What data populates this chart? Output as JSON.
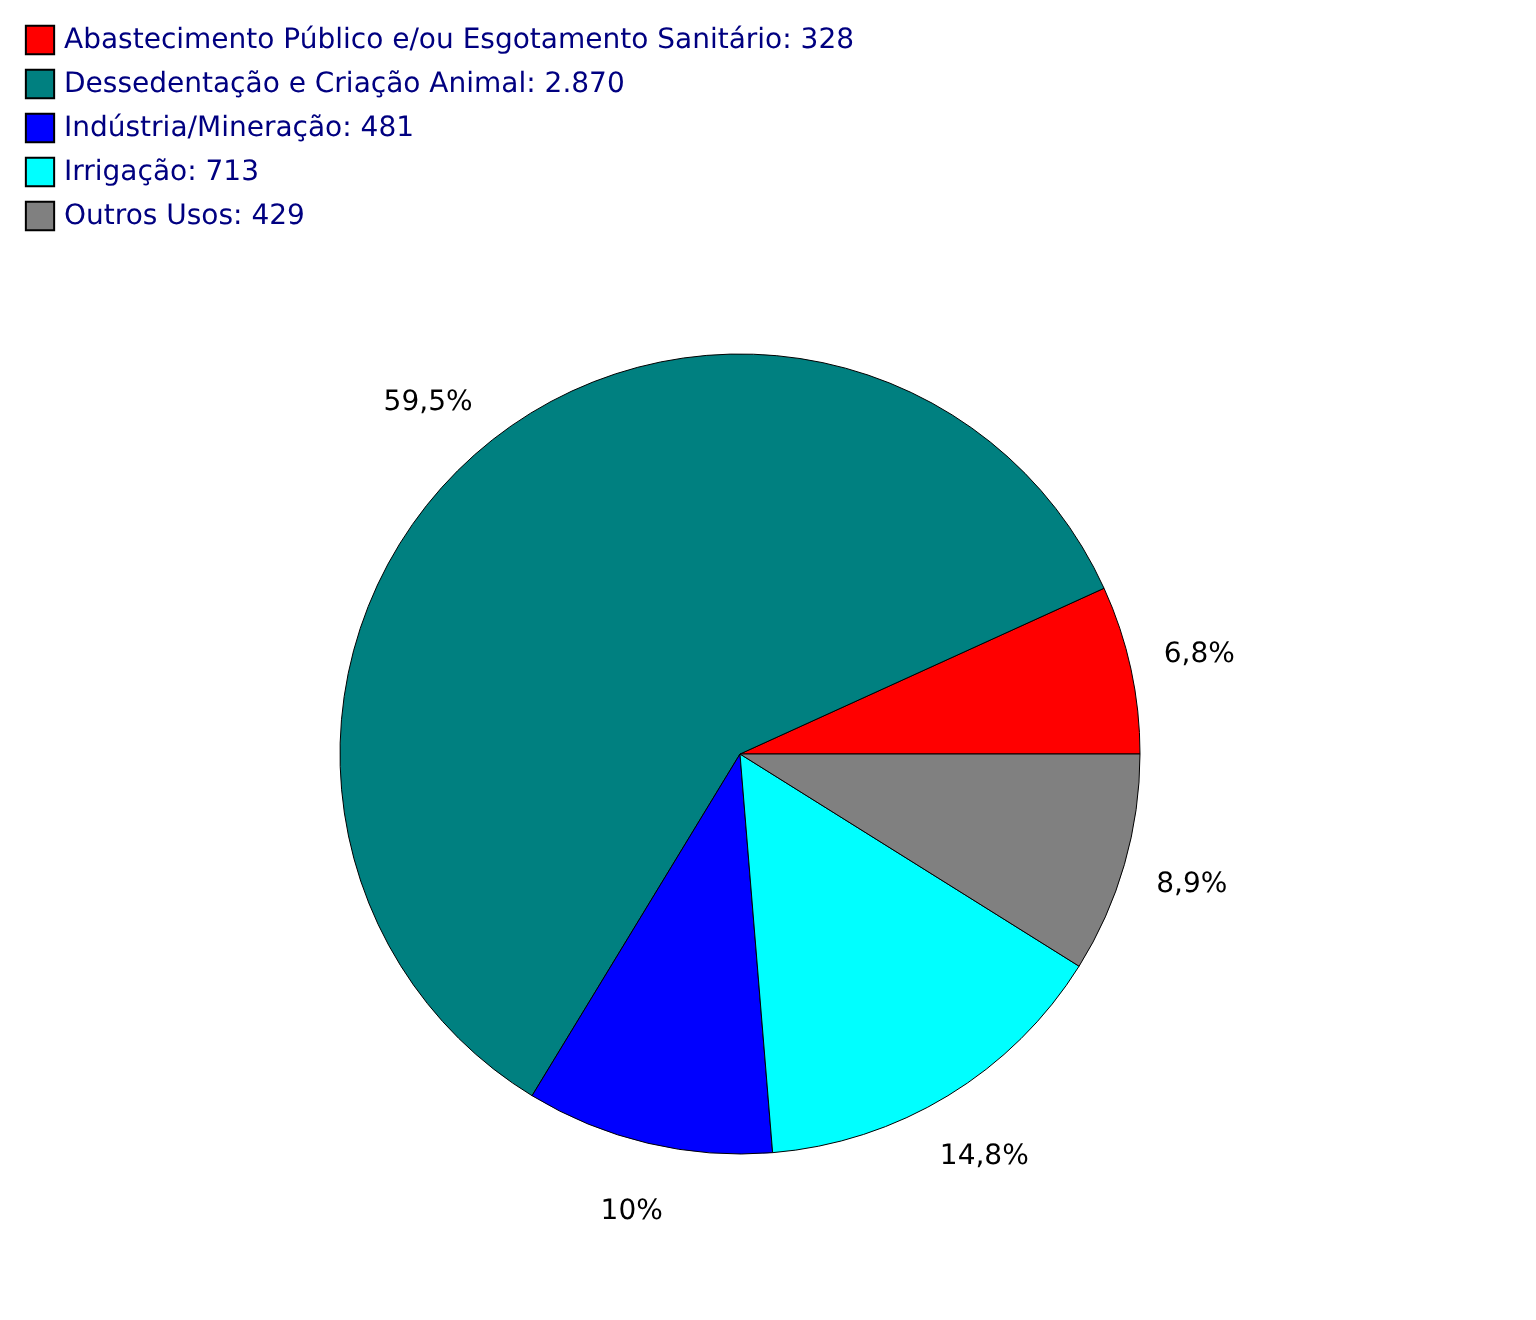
{
  "chart_data": {
    "type": "pie",
    "categories": [
      "Abastecimento Público e/ou Esgotamento Sanitário: 328",
      "Dessedentação e Criação Animal: 2.870",
      "Indústria/Mineração: 481",
      "Irrigação: 713",
      "Outros Usos: 429"
    ],
    "values": [
      6.8,
      59.5,
      10,
      14.8,
      8.9
    ],
    "colors": [
      "#ff0000",
      "#008080",
      "#0000ff",
      "#00ffff",
      "#808080"
    ],
    "value_labels": [
      "6,8%",
      "59,5%",
      "10%",
      "14,8%",
      "8,9%"
    ],
    "legend": "top"
  }
}
